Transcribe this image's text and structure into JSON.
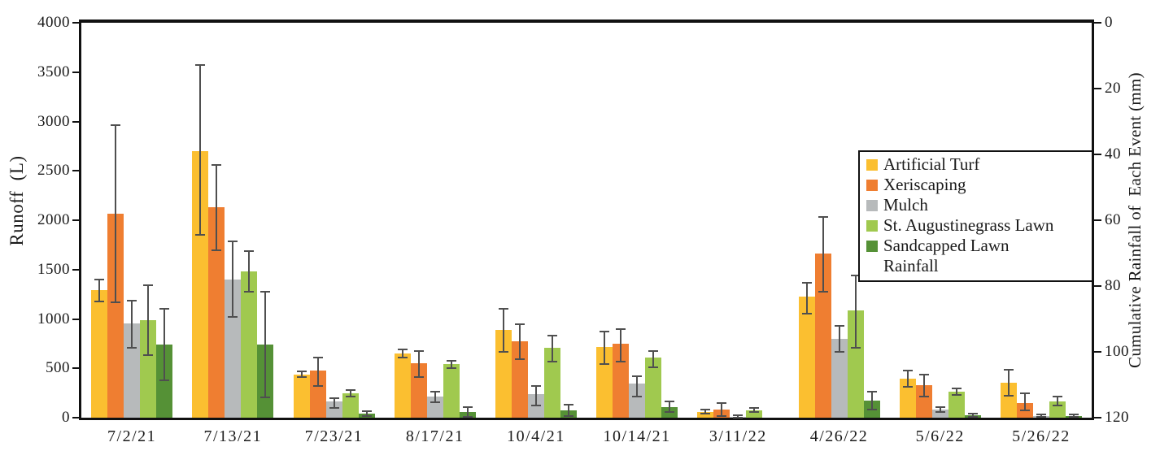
{
  "chart_data": {
    "type": "bar",
    "title": "",
    "categories": [
      "7/2/21",
      "7/13/21",
      "7/23/21",
      "8/17/21",
      "10/4/21",
      "10/14/21",
      "3/11/22",
      "4/26/22",
      "5/6/22",
      "5/26/22"
    ],
    "series": [
      {
        "name": "Artificial Turf",
        "color": "#FBBF30",
        "values": [
          1290,
          2700,
          440,
          650,
          890,
          720,
          60,
          1230,
          395,
          355
        ],
        "err_low": [
          1180,
          1850,
          410,
          610,
          665,
          545,
          40,
          1055,
          310,
          225
        ],
        "err_high": [
          1400,
          3570,
          470,
          690,
          1105,
          875,
          85,
          1370,
          480,
          485
        ]
      },
      {
        "name": "Xeriscaping",
        "color": "#EF7E31",
        "values": [
          2070,
          2130,
          480,
          550,
          770,
          750,
          85,
          1660,
          330,
          150
        ],
        "err_low": [
          1170,
          1695,
          320,
          415,
          595,
          570,
          15,
          1275,
          215,
          70
        ],
        "err_high": [
          2960,
          2560,
          605,
          675,
          950,
          900,
          150,
          2030,
          435,
          250
        ]
      },
      {
        "name": "Mulch",
        "color": "#B7BABB",
        "values": [
          955,
          1400,
          165,
          215,
          240,
          345,
          10,
          800,
          80,
          15
        ],
        "err_low": [
          710,
          1020,
          100,
          160,
          120,
          210,
          0,
          665,
          55,
          5
        ],
        "err_high": [
          1185,
          1790,
          195,
          260,
          325,
          420,
          25,
          930,
          105,
          30
        ]
      },
      {
        "name": "St. Augustinegrass Lawn",
        "color": "#A0C94F",
        "values": [
          985,
          1480,
          245,
          545,
          710,
          610,
          75,
          1090,
          265,
          165
        ],
        "err_low": [
          635,
          1275,
          210,
          500,
          570,
          510,
          55,
          705,
          230,
          120
        ],
        "err_high": [
          1340,
          1685,
          280,
          580,
          835,
          675,
          95,
          1440,
          300,
          215
        ]
      },
      {
        "name": "Sandcapped Lawn",
        "color": "#559136",
        "values": [
          740,
          740,
          40,
          60,
          75,
          110,
          0,
          170,
          25,
          20
        ],
        "err_low": [
          375,
          205,
          15,
          10,
          20,
          55,
          0,
          80,
          5,
          10
        ],
        "err_high": [
          1100,
          1275,
          65,
          105,
          130,
          165,
          0,
          260,
          45,
          30
        ]
      },
      {
        "name": "Rainfall",
        "color": null,
        "values": [],
        "note": "legend entry only; no data marks visible in plot"
      }
    ],
    "left_axis": {
      "label": "Runoff  (L)",
      "min": 0,
      "max": 4000,
      "tick_step": 500,
      "ticks": [
        0,
        500,
        1000,
        1500,
        2000,
        2500,
        3000,
        3500,
        4000
      ]
    },
    "right_axis": {
      "label": "Cumulative Rainfall of  Each Event (mm)",
      "min": 0,
      "max": 120,
      "tick_step": 20,
      "inverted": true,
      "ticks": [
        0,
        20,
        40,
        60,
        80,
        100,
        120
      ]
    },
    "legend_position": "inside-right",
    "grid": false,
    "error_bar_color": "#4f4f4f",
    "axis_color": "#111111"
  }
}
